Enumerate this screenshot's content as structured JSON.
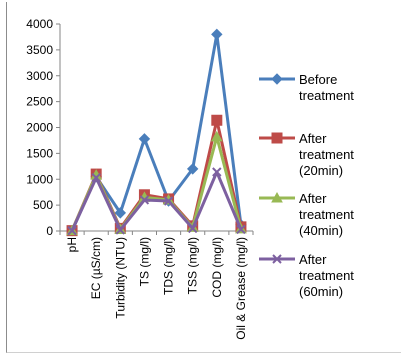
{
  "chart_data": {
    "type": "line",
    "title": "",
    "xlabel": "",
    "ylabel": "",
    "ylim": [
      0,
      4000
    ],
    "yticks": [
      0,
      500,
      1000,
      1500,
      2000,
      2500,
      3000,
      3500,
      4000
    ],
    "ytick_labels": [
      "0",
      "500",
      "1000",
      "1500",
      "2000",
      "2500",
      "3000",
      "3500",
      "4000"
    ],
    "grid": false,
    "legend_position": "right",
    "categories": [
      "pH",
      "EC (µS/cm)",
      "Turbidity (NTU)",
      "TS (mg/l)",
      "TDS (mg/l)",
      "TSS (mg/l)",
      "COD (mg/l)",
      "Oil & Grease (mg/l)"
    ],
    "series": [
      {
        "name": "Before treatment",
        "legend_lines": [
          "Before",
          "treatment"
        ],
        "color": "#4a7ebb",
        "marker": "diamond",
        "values": [
          7,
          1050,
          350,
          1780,
          580,
          1200,
          3800,
          120
        ]
      },
      {
        "name": "After treatment (20min)",
        "legend_lines": [
          "After",
          "treatment",
          "(20min)"
        ],
        "color": "#be4b48",
        "marker": "square",
        "values": [
          7,
          1100,
          50,
          700,
          620,
          100,
          2140,
          80
        ]
      },
      {
        "name": "After treatment (40min)",
        "legend_lines": [
          "After",
          "treatment",
          "(40min)"
        ],
        "color": "#98b954",
        "marker": "triangle",
        "values": [
          7,
          1080,
          30,
          650,
          600,
          70,
          1820,
          40
        ]
      },
      {
        "name": "After treatment (60min)",
        "legend_lines": [
          "After",
          "treatment",
          "(60min)"
        ],
        "color": "#7d60a0",
        "marker": "x",
        "values": [
          7,
          1030,
          20,
          600,
          580,
          50,
          1140,
          30
        ]
      }
    ]
  }
}
